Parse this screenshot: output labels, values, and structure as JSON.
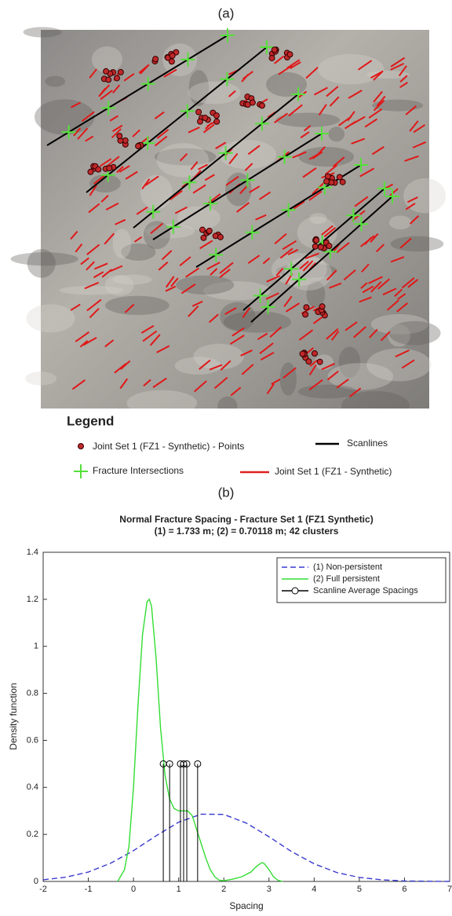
{
  "panel_labels": [
    "(a)",
    "(b)"
  ],
  "panel_a": {
    "legend": {
      "title": "Legend",
      "items": [
        "Joint Set 1 (FZ1 - Synthetic) - Points",
        "Scanlines",
        "Fracture Intersections",
        "Joint Set 1 (FZ1 - Synthetic)"
      ]
    }
  },
  "chart_data": {
    "type": "line",
    "title": "Normal Fracture Spacing - Fracture Set 1 (FZ1 Synthetic)",
    "subtitle": "(1) = 1.733 m; (2) = 0.70118 m; 42 clusters",
    "x_label": "Spacing",
    "y_label": "Density function",
    "xlim": [
      -2,
      7
    ],
    "xticks": [
      -2,
      -1,
      0,
      1,
      2,
      3,
      4,
      5,
      6,
      7
    ],
    "ylim": [
      0,
      1.4
    ],
    "yticks": [
      0,
      0.2,
      0.4,
      0.6,
      0.8,
      1,
      1.2,
      1.4
    ],
    "legend_position": "upper right",
    "series": [
      {
        "name": "(1) Non-persistent",
        "color": "#3a3ad0",
        "style": "dashed",
        "kind": "line",
        "x": [
          -2,
          -1.5,
          -1,
          -0.5,
          0,
          0.5,
          1,
          1.5,
          2,
          2.5,
          3,
          3.5,
          4,
          4.5,
          5,
          5.5,
          6,
          6.5,
          7
        ],
        "values": [
          0.007,
          0.018,
          0.04,
          0.078,
          0.131,
          0.194,
          0.252,
          0.286,
          0.285,
          0.248,
          0.19,
          0.127,
          0.075,
          0.038,
          0.017,
          0.007,
          0.002,
          0.001,
          0
        ]
      },
      {
        "name": "(2) Full persistent",
        "color": "#33dd33",
        "style": "solid",
        "kind": "line",
        "x": [
          -0.35,
          -0.2,
          -0.1,
          0,
          0.1,
          0.2,
          0.3,
          0.35,
          0.4,
          0.5,
          0.6,
          0.7,
          0.8,
          0.9,
          1.0,
          1.1,
          1.2,
          1.3,
          1.4,
          1.5,
          1.6,
          1.7,
          1.8,
          1.9,
          2.0,
          2.2,
          2.4,
          2.6,
          2.7,
          2.8,
          2.85,
          2.9,
          3.0,
          3.1,
          3.2,
          3.3
        ],
        "values": [
          0,
          0.05,
          0.15,
          0.4,
          0.75,
          1.05,
          1.19,
          1.2,
          1.17,
          0.95,
          0.65,
          0.45,
          0.35,
          0.31,
          0.3,
          0.3,
          0.3,
          0.28,
          0.22,
          0.16,
          0.1,
          0.05,
          0.02,
          0.005,
          0.003,
          0.01,
          0.02,
          0.04,
          0.06,
          0.075,
          0.08,
          0.075,
          0.05,
          0.02,
          0.005,
          0
        ]
      },
      {
        "name": "Scanline Average Spacings",
        "color": "#000000",
        "style": "solid",
        "kind": "stem",
        "x": [
          0.66,
          0.8,
          1.04,
          1.11,
          1.18,
          1.42
        ],
        "values": [
          0.5,
          0.5,
          0.5,
          0.5,
          0.5,
          0.5
        ]
      }
    ]
  }
}
